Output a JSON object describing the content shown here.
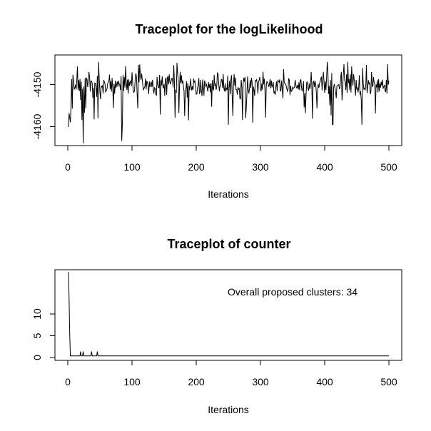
{
  "chart_data": [
    {
      "type": "line",
      "title": "Traceplot for the logLikelihood",
      "xlabel": "Iterations",
      "ylabel": "",
      "xlim": [
        0,
        500
      ],
      "ylim": [
        -4164.5,
        -4145
      ],
      "xticks": [
        0,
        100,
        200,
        300,
        400,
        500
      ],
      "yticks": [
        -4160,
        -4150
      ],
      "xtick_labels": [
        "0",
        "100",
        "200",
        "300",
        "400",
        "500"
      ],
      "ytick_labels": [
        "-4160",
        "-4150"
      ],
      "grid": false,
      "series": [
        {
          "base": -4151.5,
          "amplitude": 3.2,
          "min_value": -4164.0,
          "max_value": -4146.5,
          "n": 500,
          "seed": 42,
          "spikes": [
            {
              "x": 1,
              "y": -4160.5
            },
            {
              "x": 2,
              "y": -4157.5
            },
            {
              "x": 3,
              "y": -4158.5
            },
            {
              "x": 4,
              "y": -4159.5
            },
            {
              "x": 5,
              "y": -4156.0
            },
            {
              "x": 22,
              "y": -4159.0
            },
            {
              "x": 24,
              "y": -4164.0
            },
            {
              "x": 28,
              "y": -4156.5
            },
            {
              "x": 84,
              "y": -4163.5
            },
            {
              "x": 85,
              "y": -4160.0
            },
            {
              "x": 167,
              "y": -4158.5
            },
            {
              "x": 250,
              "y": -4160.0
            },
            {
              "x": 272,
              "y": -4159.0
            },
            {
              "x": 410,
              "y": -4158.0
            },
            {
              "x": 412,
              "y": -4160.0
            },
            {
              "x": 413,
              "y": -4160.0
            },
            {
              "x": 458,
              "y": -4160.0
            },
            {
              "x": 430,
              "y": -4147.0
            },
            {
              "x": 436,
              "y": -4146.5
            },
            {
              "x": 498,
              "y": -4147.0
            }
          ]
        }
      ]
    },
    {
      "type": "line",
      "title": "Traceplot of counter",
      "xlabel": "Iterations",
      "ylabel": "",
      "xlim": [
        0,
        500
      ],
      "ylim": [
        -1,
        19.5
      ],
      "xticks": [
        0,
        100,
        200,
        300,
        400,
        500
      ],
      "yticks": [
        0,
        5,
        10
      ],
      "xtick_labels": [
        "0",
        "100",
        "200",
        "300",
        "400",
        "500"
      ],
      "ytick_labels": [
        "0",
        "5",
        "10"
      ],
      "annotation": "Overall proposed clusters: 34",
      "grid": false,
      "series": [
        {
          "points": [
            [
              1,
              19.0
            ],
            [
              2,
              13.0
            ],
            [
              3,
              5.0
            ],
            [
              4,
              0
            ],
            [
              19,
              0
            ],
            [
              20,
              1
            ],
            [
              21,
              0
            ],
            [
              23,
              0
            ],
            [
              24,
              1
            ],
            [
              25,
              0
            ],
            [
              36,
              0
            ],
            [
              37,
              1
            ],
            [
              38,
              0
            ],
            [
              45,
              0
            ],
            [
              46,
              1
            ],
            [
              47,
              0
            ],
            [
              500,
              0
            ]
          ]
        }
      ]
    }
  ]
}
